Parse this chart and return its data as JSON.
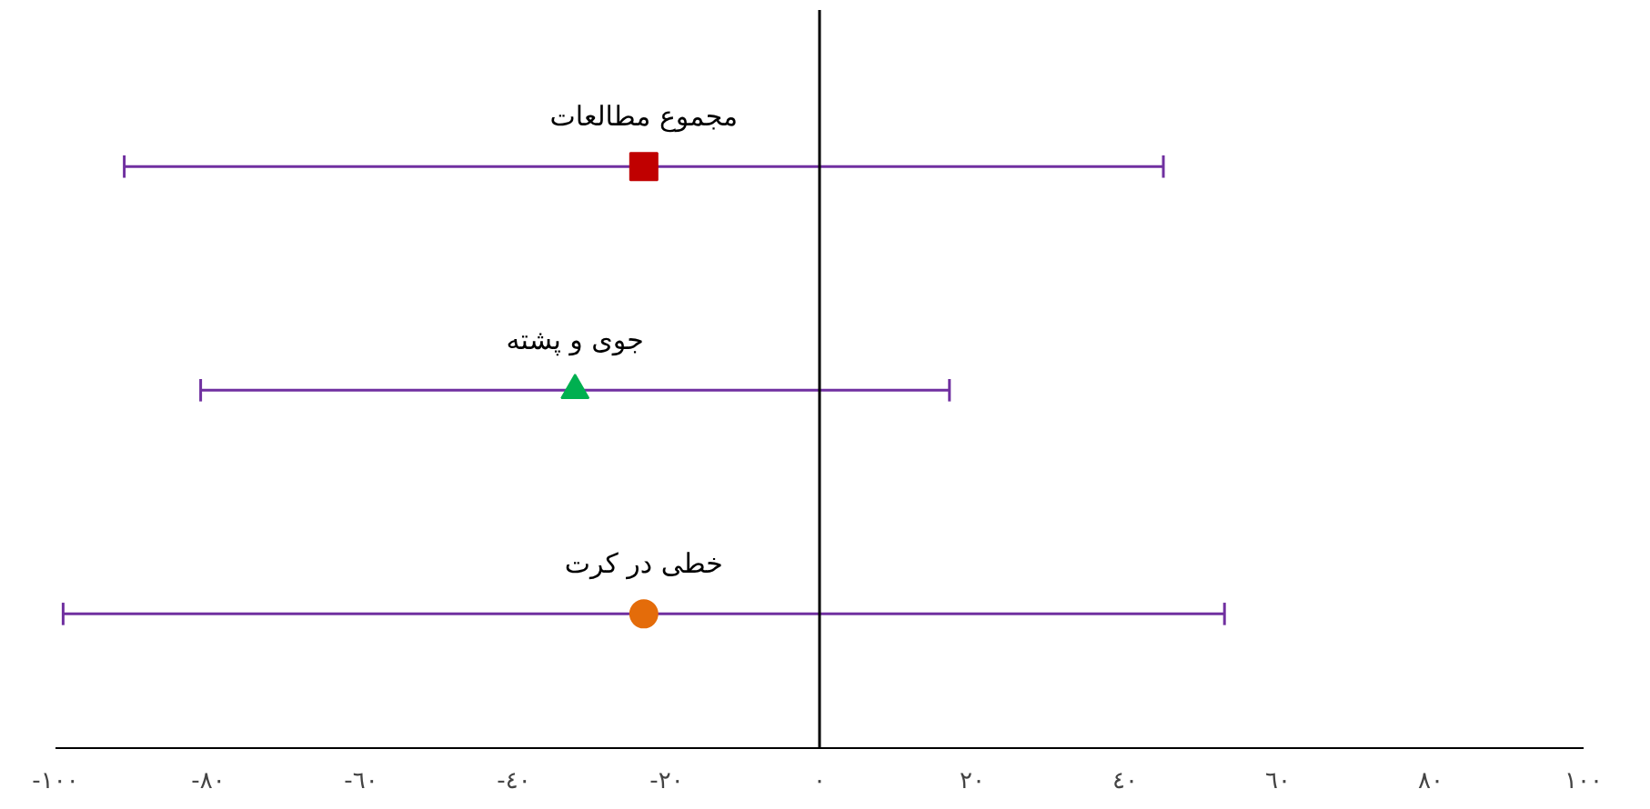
{
  "chart_data": {
    "type": "scatter",
    "orientation": "horizontal",
    "categories": [
      null,
      null,
      null
    ],
    "series": [
      {
        "name": "مجموع مطالعات",
        "color": "#c00000",
        "marker": "square",
        "values": [
          -23,
          null,
          null
        ],
        "errors": [
          [
            -91,
            45
          ],
          null,
          null
        ]
      },
      {
        "name": "جوی و پشته",
        "color": "#00b050",
        "marker": "triangle",
        "values": [
          null,
          -32,
          null
        ],
        "errors": [
          null,
          [
            -81,
            17
          ],
          null
        ]
      },
      {
        "name": "خطی در کرت",
        "color": "#e46c0a",
        "marker": "circle",
        "values": [
          null,
          null,
          -23
        ],
        "errors": [
          null,
          null,
          [
            -99,
            53
          ]
        ]
      }
    ],
    "xlim": [
      -100,
      100
    ],
    "xticks": [
      {
        "value": -100,
        "label": "-١٠٠"
      },
      {
        "value": -80,
        "label": "-٨٠"
      },
      {
        "value": -60,
        "label": "-٦٠"
      },
      {
        "value": -40,
        "label": "-٤٠"
      },
      {
        "value": -20,
        "label": "-٢٠"
      },
      {
        "value": 0,
        "label": "٠"
      },
      {
        "value": 20,
        "label": "٢٠"
      },
      {
        "value": 40,
        "label": "٤٠"
      },
      {
        "value": 60,
        "label": "٦٠"
      },
      {
        "value": 80,
        "label": "٨٠"
      },
      {
        "value": 100,
        "label": "١٠٠"
      }
    ],
    "ref_lines": [
      {
        "axis": "x",
        "value": 0,
        "color": "#000000"
      }
    ],
    "grid": false
  }
}
